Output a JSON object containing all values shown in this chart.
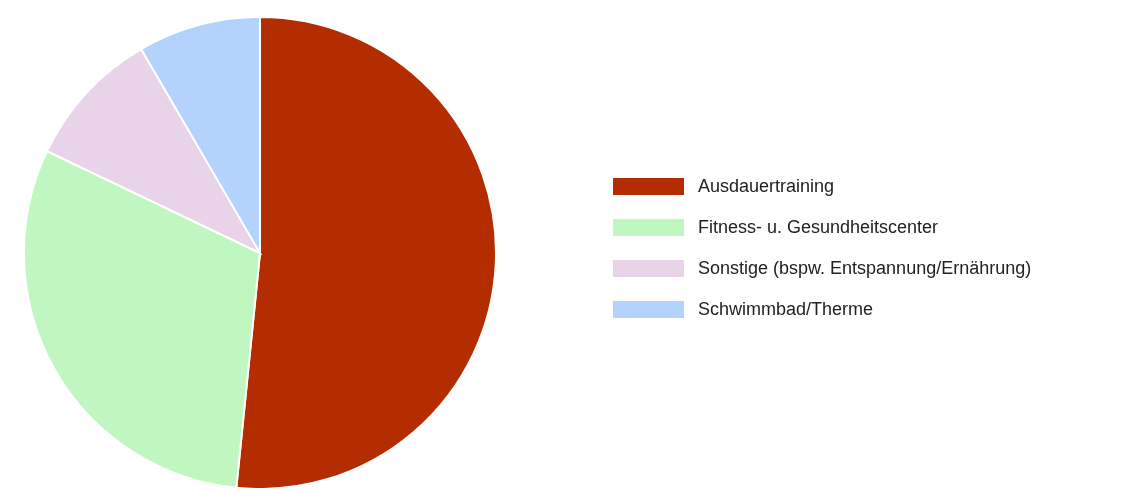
{
  "chart_data": {
    "type": "pie",
    "categories": [
      "Ausdauertraining",
      "Fitness- u. Gesundheitscenter",
      "Sonstige (bspw. Entspannung/Ernährung)",
      "Schwimmbad/Therme"
    ],
    "values": [
      51.6,
      30.5,
      9.5,
      8.4
    ],
    "colors": [
      "#b32d00",
      "#c0f6c0",
      "#e8d3e8",
      "#b3d2fc"
    ],
    "legend": "right"
  }
}
